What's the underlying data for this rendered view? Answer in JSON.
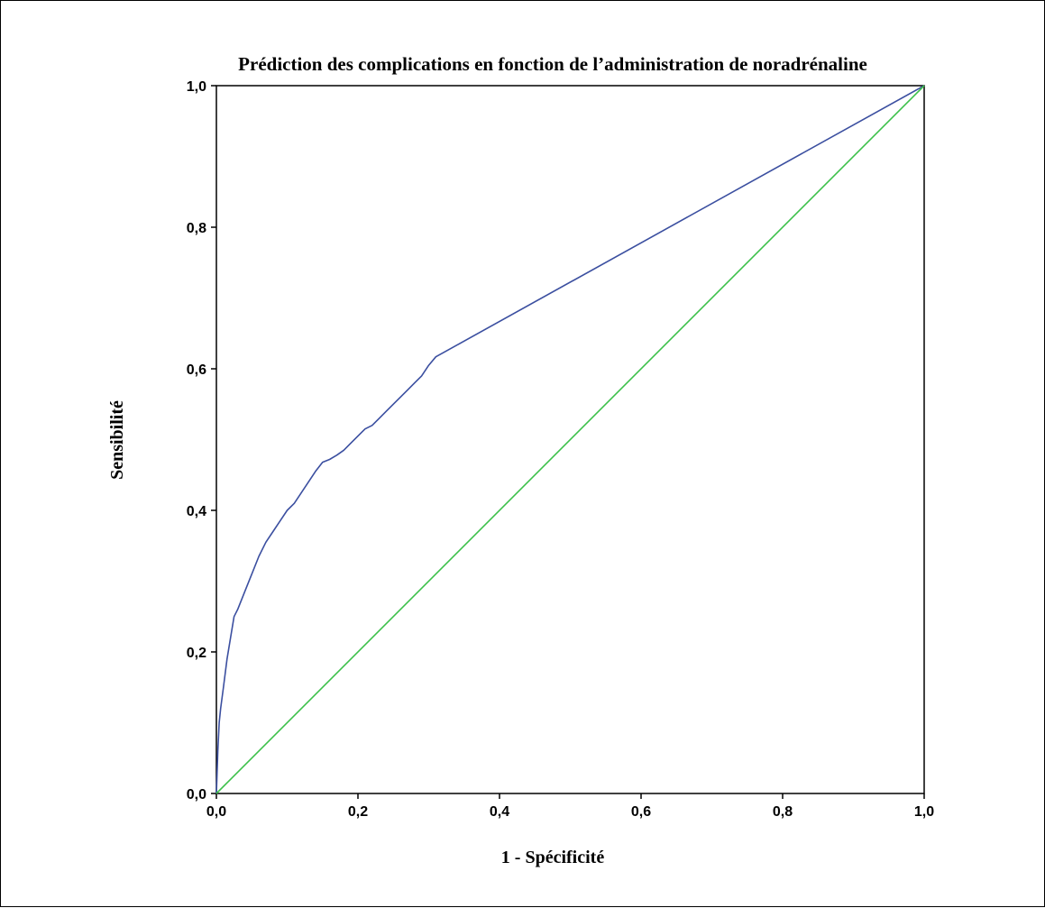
{
  "chart_data": {
    "type": "line",
    "title": "Prédiction des complications en fonction de l’administration de noradrénaline",
    "xlabel": "1 - Spécificité",
    "ylabel": "Sensibilité",
    "xlim": [
      0,
      1
    ],
    "ylim": [
      0,
      1
    ],
    "x_ticks": [
      0,
      0.2,
      0.4,
      0.6,
      0.8,
      1.0
    ],
    "y_ticks": [
      0,
      0.2,
      0.4,
      0.6,
      0.8,
      1.0
    ],
    "x_tick_labels": [
      "0,0",
      "0,2",
      "0,4",
      "0,6",
      "0,8",
      "1,0"
    ],
    "y_tick_labels": [
      "0,0",
      "0,2",
      "0,4",
      "0,6",
      "0,8",
      "1,0"
    ],
    "grid": false,
    "legend": "none",
    "series": [
      {
        "color": "#3b4fa0",
        "x": [
          0,
          0.002,
          0.004,
          0.006,
          0.01,
          0.015,
          0.02,
          0.025,
          0.03,
          0.04,
          0.05,
          0.06,
          0.07,
          0.08,
          0.09,
          0.1,
          0.11,
          0.12,
          0.13,
          0.14,
          0.15,
          0.16,
          0.17,
          0.18,
          0.19,
          0.2,
          0.21,
          0.22,
          0.23,
          0.24,
          0.25,
          0.26,
          0.27,
          0.28,
          0.29,
          0.3,
          0.31,
          1.0
        ],
        "y": [
          0,
          0.06,
          0.1,
          0.12,
          0.15,
          0.19,
          0.22,
          0.25,
          0.26,
          0.285,
          0.31,
          0.335,
          0.355,
          0.37,
          0.385,
          0.4,
          0.41,
          0.425,
          0.44,
          0.455,
          0.468,
          0.472,
          0.478,
          0.485,
          0.495,
          0.505,
          0.515,
          0.52,
          0.53,
          0.54,
          0.55,
          0.56,
          0.57,
          0.58,
          0.59,
          0.605,
          0.617,
          1.0
        ]
      },
      {
        "color": "#3cc04a",
        "x": [
          0,
          1.0
        ],
        "y": [
          0,
          1.0
        ]
      }
    ]
  }
}
